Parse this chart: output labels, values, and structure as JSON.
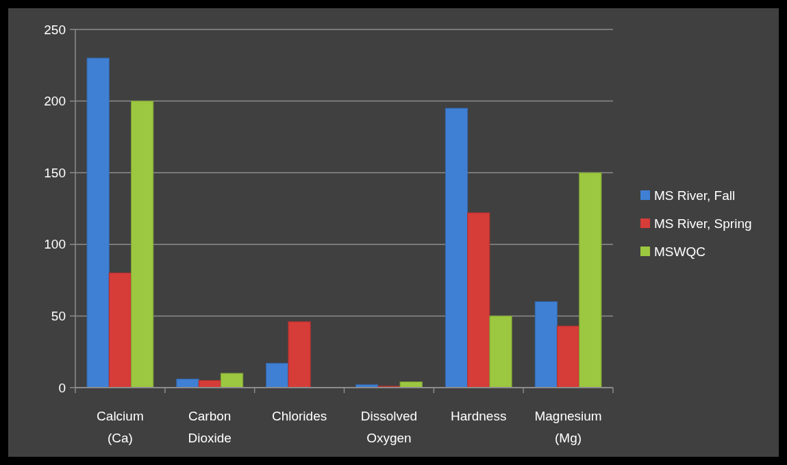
{
  "chart_data": {
    "type": "bar",
    "categories": [
      "Calcium (Ca)",
      "Carbon Dioxide",
      "Chlorides",
      "Dissolved Oxygen",
      "Hardness",
      "Magnesium (Mg)"
    ],
    "series": [
      {
        "name": "MS River, Fall",
        "color": "#3f80d4",
        "values": [
          230,
          6,
          17,
          2,
          195,
          60
        ]
      },
      {
        "name": "MS River, Spring",
        "color": "#d63c38",
        "values": [
          80,
          5,
          46,
          1,
          122,
          43
        ]
      },
      {
        "name": "MSWQC",
        "color": "#9cc740",
        "values": [
          200,
          10,
          null,
          4,
          50,
          150
        ]
      }
    ],
    "ylim": [
      0,
      250
    ],
    "yticks": [
      0,
      50,
      100,
      150,
      200,
      250
    ],
    "grid": "y",
    "legend": "right"
  }
}
